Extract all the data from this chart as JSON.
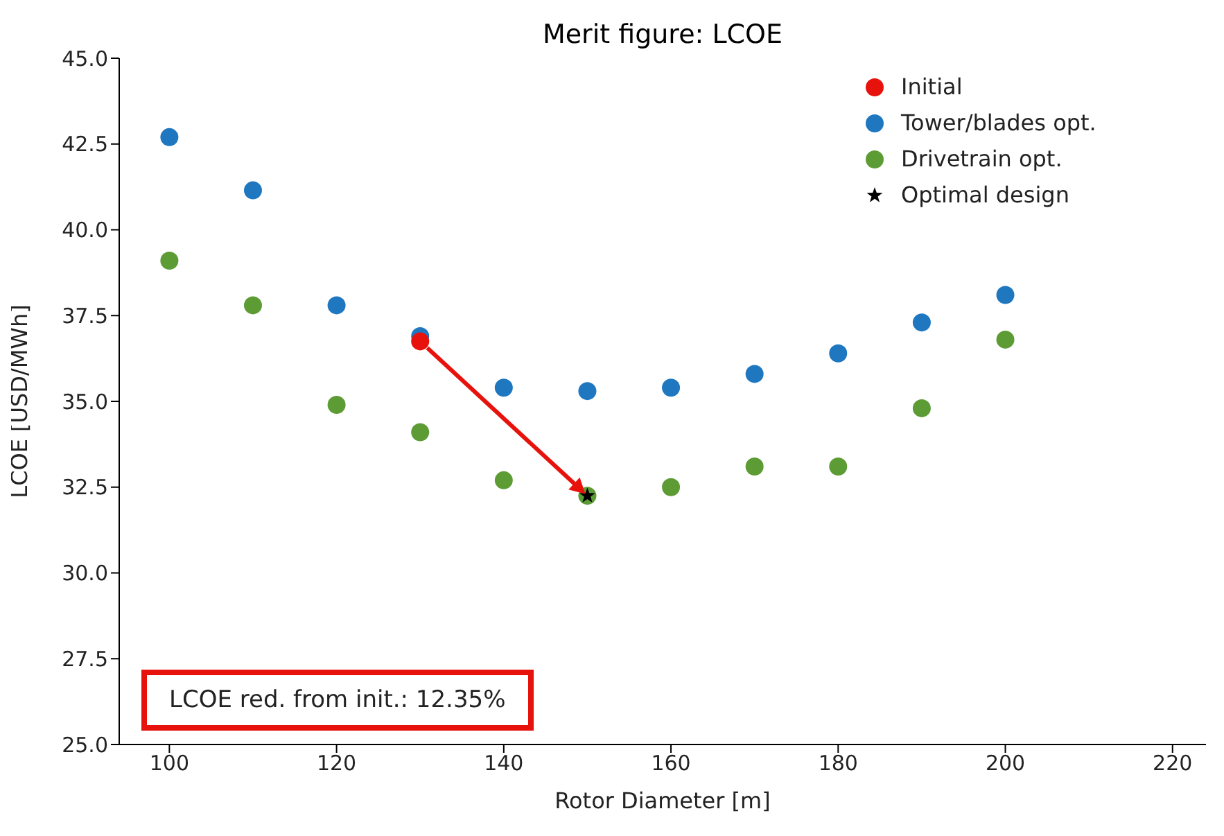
{
  "chart_data": {
    "type": "scatter",
    "title": "Merit figure: LCOE",
    "xlabel": "Rotor Diameter [m]",
    "ylabel": "LCOE [USD/MWh]",
    "xlim": [
      94,
      224
    ],
    "xticks": [
      100,
      120,
      140,
      160,
      180,
      200,
      220
    ],
    "ylim": [
      25,
      45
    ],
    "yticks": [
      {
        "value": 25,
        "label": "25.0"
      },
      {
        "value": 27.5,
        "label": "27.5"
      },
      {
        "value": 30,
        "label": "30.0"
      },
      {
        "value": 32.5,
        "label": "32.5"
      },
      {
        "value": 35,
        "label": "35.0"
      },
      {
        "value": 37.5,
        "label": "37.5"
      },
      {
        "value": 40,
        "label": "40.0"
      },
      {
        "value": 42.5,
        "label": "42.5"
      },
      {
        "value": 45,
        "label": "45.0"
      }
    ],
    "grid": false,
    "legend": "top right",
    "series": [
      {
        "name": "Initial",
        "color": "#e8120c",
        "marker": "circle",
        "x": [
          130
        ],
        "values": [
          36.75
        ]
      },
      {
        "name": "Tower/blades opt.",
        "color": "#1f77c0",
        "marker": "circle",
        "x": [
          100,
          110,
          120,
          130,
          140,
          150,
          160,
          170,
          180,
          190,
          200
        ],
        "values": [
          42.7,
          41.15,
          37.8,
          36.9,
          35.4,
          35.3,
          35.4,
          35.8,
          36.4,
          37.3,
          38.1
        ]
      },
      {
        "name": "Drivetrain opt.",
        "color": "#5d9c35",
        "marker": "circle",
        "x": [
          100,
          110,
          120,
          130,
          140,
          150,
          160,
          170,
          180,
          190,
          200
        ],
        "values": [
          39.1,
          37.8,
          34.9,
          34.1,
          32.7,
          32.25,
          32.5,
          33.1,
          33.1,
          34.8,
          36.8
        ]
      },
      {
        "name": "Optimal design",
        "color": "#000000",
        "marker": "star",
        "x": [
          150
        ],
        "values": [
          32.25
        ]
      }
    ],
    "annotations": [
      "LCOE red. from init.: 12.35%"
    ]
  }
}
